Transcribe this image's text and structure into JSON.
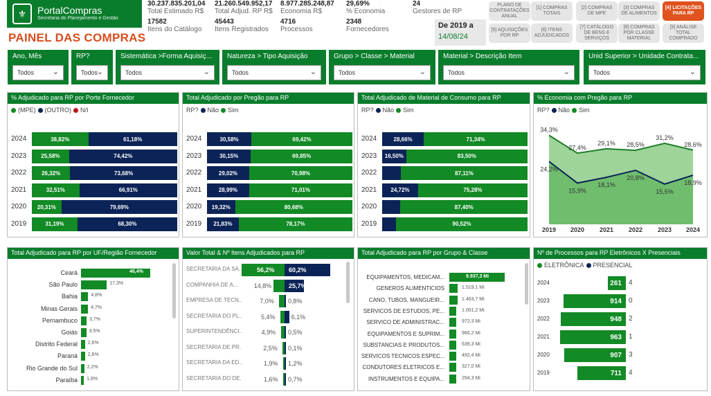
{
  "header": {
    "logo_title": "PortalCompras",
    "logo_subtitle": "Secretaria do Planejamento e Gestão",
    "page_title": "PAINEL DAS COMPRAS",
    "kpis": [
      {
        "value": "30.237.835.201,04",
        "label": "Total Estimado R$"
      },
      {
        "value": "21.260.549.952,17",
        "label": "Total Adjud. RP R$"
      },
      {
        "value": "8.977.285.248,87",
        "label": "Economia R$"
      },
      {
        "value": "29,69%",
        "label": "% Economia"
      },
      {
        "value": "24",
        "label": "Gestores de RP"
      },
      {
        "value": "17582",
        "label": "Itens do Catálogo"
      },
      {
        "value": "45443",
        "label": "Itens Registrados"
      },
      {
        "value": "4716",
        "label": "Processos"
      },
      {
        "value": "2348",
        "label": "Fornecedores"
      }
    ],
    "date_from": "De 2019 a",
    "date_to": "14/08/24",
    "nav": [
      "PLANO DE CONTRATAÇÕES ANUAL",
      "[1] COMPRAS TOTAIS",
      "[2] COMPRAS DE MPE",
      "[3] COMPRAS DE ALIMENTOS",
      "[4] LICITAÇÕES PARA RP",
      "[5] AQUISIÇÕES POR RP",
      "[6] ITENS ADJUDICADOS",
      "[7] CATÁLOGO DE BENS E SERVIÇOS",
      "[8] COMPRAS POR CLASSE MATERIAL",
      "[9] ANÁLISE TOTAL COMPRADO"
    ]
  },
  "filters": [
    {
      "label": "Ano, Mês",
      "value": "Todos"
    },
    {
      "label": "RP?",
      "value": "Todos"
    },
    {
      "label": "Sistemática >Forma Aquisiç...",
      "value": "Todos"
    },
    {
      "label": "Natureza > Tipo Aquisição",
      "value": "Todos"
    },
    {
      "label": "Grupo > Classe > Material",
      "value": "Todos"
    },
    {
      "label": "Material > Descrição Item",
      "value": "Todos"
    },
    {
      "label": "Unid Superior > Unidade Contrata...",
      "value": "Todos"
    }
  ],
  "chart_data": [
    {
      "type": "bar",
      "title": "% Adjudicado para RP por Porte Fornecedor",
      "legend": [
        "(MPE)",
        "(OUTRO)",
        "N/I"
      ],
      "categories": [
        "2024",
        "2023",
        "2022",
        "2021",
        "2020",
        "2019"
      ],
      "series": [
        {
          "name": "(MPE)",
          "values": [
            38.82,
            25.58,
            26.32,
            32.51,
            20.31,
            31.19
          ],
          "labels": [
            "38,82%",
            "25,58%",
            "26,32%",
            "32,51%",
            "20,31%",
            "31,19%"
          ]
        },
        {
          "name": "(OUTRO)",
          "values": [
            61.18,
            74.42,
            73.68,
            66.91,
            79.69,
            68.3
          ],
          "labels": [
            "61,18%",
            "74,42%",
            "73,68%",
            "66,91%",
            "79,69%",
            "68,30%"
          ]
        }
      ]
    },
    {
      "type": "bar",
      "title": "Total Adjudicado por Pregão para RP",
      "legend_title": "RP?",
      "legend": [
        "Não",
        "Sim"
      ],
      "categories": [
        "2024",
        "2023",
        "2022",
        "2021",
        "2020",
        "2019"
      ],
      "series": [
        {
          "name": "Não",
          "values": [
            30.58,
            30.15,
            29.02,
            28.99,
            19.32,
            21.83
          ],
          "labels": [
            "30,58%",
            "30,15%",
            "29,02%",
            "28,99%",
            "19,32%",
            "21,83%"
          ]
        },
        {
          "name": "Sim",
          "values": [
            69.42,
            69.85,
            70.98,
            71.01,
            80.68,
            78.17
          ],
          "labels": [
            "69,42%",
            "69,85%",
            "70,98%",
            "71,01%",
            "80,68%",
            "78,17%"
          ]
        }
      ]
    },
    {
      "type": "bar",
      "title": "Total Adjudicado de Material de Consumo para RP",
      "legend_title": "RP?",
      "legend": [
        "Não",
        "Sim"
      ],
      "categories": [
        "2024",
        "2023",
        "2022",
        "2021",
        "2020",
        "2019"
      ],
      "series": [
        {
          "name": "Não",
          "values": [
            28.66,
            16.5,
            12.89,
            24.72,
            12.6,
            9.48
          ],
          "labels": [
            "28,66%",
            "16,50%",
            "",
            "24,72%",
            "",
            ""
          ]
        },
        {
          "name": "Sim",
          "values": [
            71.34,
            83.5,
            87.11,
            75.28,
            87.4,
            90.52
          ],
          "labels": [
            "71,34%",
            "83,50%",
            "87,11%",
            "75,28%",
            "87,40%",
            "90,52%"
          ]
        }
      ]
    },
    {
      "type": "area",
      "title": "% Economia com Pregão para RP",
      "legend_title": "RP?",
      "legend": [
        "Não",
        "Sim"
      ],
      "x": [
        "2019",
        "2020",
        "2021",
        "2022",
        "2023",
        "2024"
      ],
      "ylim": [
        0,
        40
      ],
      "series": [
        {
          "name": "Sim",
          "values": [
            34.3,
            27.4,
            29.1,
            28.5,
            31.2,
            28.6
          ],
          "labels": [
            "34,3%",
            "27,4%",
            "29,1%",
            "28,5%",
            "31,2%",
            "28,6%"
          ]
        },
        {
          "name": "Não",
          "values": [
            24.2,
            15.9,
            18.1,
            20.8,
            15.5,
            18.9
          ],
          "labels": [
            "24,2%",
            "15,9%",
            "18,1%",
            "20,8%",
            "15,5%",
            "18,9%"
          ]
        }
      ]
    },
    {
      "type": "bar",
      "title": "Total Adjudicado para RP por UF/Região Fornecedor",
      "categories": [
        "Ceará",
        "São Paulo",
        "Bahia",
        "Minas Gerais",
        "Pernambuco",
        "Goiás",
        "Distrito Federal",
        "Paraná",
        "Rio Grande do Sul",
        "Paraíba"
      ],
      "values": [
        46.4,
        17.3,
        4.8,
        4.7,
        3.7,
        3.5,
        2.6,
        2.6,
        2.2,
        1.9
      ],
      "labels": [
        "46,4%",
        "17,3%",
        "4,8%",
        "4,7%",
        "3,7%",
        "3,5%",
        "2,6%",
        "2,6%",
        "2,2%",
        "1,9%"
      ]
    },
    {
      "type": "bar",
      "title": "Valor Total & Nº Itens Adjudicados para RP",
      "categories": [
        "SECRETARIA DA SA...",
        "COMPANHIA DE A...",
        "EMPRESA DE TECN...",
        "SECRETARIA DO PL...",
        "SUPERINTENDÊNCI...",
        "SECRETARIA DE PR...",
        "SECRETARIA DA ED...",
        "SECRETARIA DO DE..."
      ],
      "series": [
        {
          "name": "Valor Total",
          "values": [
            56.2,
            14.8,
            7.0,
            5.4,
            4.9,
            2.5,
            1.9,
            1.6
          ],
          "labels": [
            "56,2%",
            "14,8%",
            "7,0%",
            "5,4%",
            "4,9%",
            "2,5%",
            "1,9%",
            "1,6%"
          ]
        },
        {
          "name": "Nº Itens",
          "values": [
            60.2,
            25.7,
            0.8,
            6.1,
            0.5,
            0.1,
            1.2,
            0.7
          ],
          "labels": [
            "60,2%",
            "25,7%",
            "0,8%",
            "6,1%",
            "0,5%",
            "0,1%",
            "1,2%",
            "0,7%"
          ]
        }
      ]
    },
    {
      "type": "bar",
      "title": "Total Adjudicado para RP por Grupo & Classe",
      "categories": [
        "EQUIPAMENTOS, MEDICAM...",
        "GENEROS ALIMENTICIOS",
        "CANO, TUBOS, MANGUEIR...",
        "SERVICOS DE ESTUDOS, PE...",
        "SERVICO DE ADMINISTRAC...",
        "EQUIPAMENTOS E SUPRIM...",
        "SUBSTANCIAS E PRODUTOS...",
        "SERVICOS TECNICOS ESPEC...",
        "CONDUTORES ELETRICOS E...",
        "INSTRUMENTOS E EQUIPA..."
      ],
      "values": [
        9937.3,
        1519.1,
        1463.7,
        1001.2,
        972.3,
        966.2,
        639.3,
        492.4,
        327.0,
        294.3
      ],
      "labels": [
        "9.937,3 Mi",
        "1.519,1 Mi",
        "1.463,7 Mi",
        "1.001,2 Mi",
        "972,3 Mi",
        "966,2 Mi",
        "639,3 Mi",
        "492,4 Mi",
        "327,0 Mi",
        "294,3 Mi"
      ]
    },
    {
      "type": "bar",
      "title": "Nº de Processos para RP Eletrônicos X Presenciais",
      "legend": [
        "ELETRÔNICA",
        "PRESENCIAL"
      ],
      "categories": [
        "2024",
        "2023",
        "2022",
        "2021",
        "2020",
        "2019"
      ],
      "series": [
        {
          "name": "ELETRÔNICA",
          "values": [
            261,
            914,
            948,
            963,
            907,
            711
          ]
        },
        {
          "name": "PRESENCIAL",
          "values": [
            4,
            0,
            2,
            1,
            3,
            4
          ]
        }
      ]
    }
  ]
}
